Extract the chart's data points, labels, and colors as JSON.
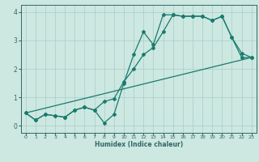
{
  "title": "",
  "xlabel": "Humidex (Indice chaleur)",
  "ylabel": "",
  "bg_color": "#cce8e0",
  "grid_color": "#aacccc",
  "line_color": "#1a7a6e",
  "spine_color": "#336666",
  "xlim": [
    -0.5,
    23.5
  ],
  "ylim": [
    -0.25,
    4.25
  ],
  "xticks": [
    0,
    1,
    2,
    3,
    4,
    5,
    6,
    7,
    8,
    9,
    10,
    11,
    12,
    13,
    14,
    15,
    16,
    17,
    18,
    19,
    20,
    21,
    22,
    23
  ],
  "yticks": [
    0,
    1,
    2,
    3,
    4
  ],
  "line1_x": [
    0,
    1,
    2,
    3,
    4,
    5,
    6,
    7,
    8,
    9,
    10,
    11,
    12,
    13,
    14,
    15,
    16,
    17,
    18,
    19,
    20,
    21,
    22,
    23
  ],
  "line1_y": [
    0.45,
    0.2,
    0.4,
    0.35,
    0.3,
    0.55,
    0.65,
    0.55,
    0.85,
    0.95,
    1.55,
    2.0,
    2.5,
    2.75,
    3.3,
    3.9,
    3.85,
    3.85,
    3.85,
    3.7,
    3.85,
    3.1,
    2.55,
    2.4
  ],
  "line2_x": [
    0,
    1,
    2,
    3,
    4,
    5,
    6,
    7,
    8,
    9,
    10,
    11,
    12,
    13,
    14,
    15,
    16,
    17,
    18,
    19,
    20,
    21,
    22,
    23
  ],
  "line2_y": [
    0.45,
    0.2,
    0.4,
    0.35,
    0.3,
    0.55,
    0.65,
    0.55,
    0.1,
    0.4,
    1.5,
    2.5,
    3.3,
    2.85,
    3.9,
    3.9,
    3.85,
    3.85,
    3.85,
    3.7,
    3.85,
    3.1,
    2.4,
    2.4
  ],
  "line3_x": [
    0,
    23
  ],
  "line3_y": [
    0.45,
    2.4
  ]
}
